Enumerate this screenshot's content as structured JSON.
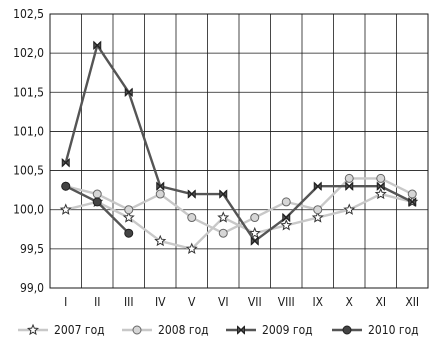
{
  "chart_data": {
    "type": "line",
    "categories": [
      "I",
      "II",
      "III",
      "IV",
      "V",
      "VI",
      "VII",
      "VIII",
      "IX",
      "X",
      "XI",
      "XII"
    ],
    "ylim": [
      99.0,
      102.5
    ],
    "yticks": [
      99.0,
      99.5,
      100.0,
      100.5,
      101.0,
      101.5,
      102.0,
      102.5
    ],
    "ytick_labels": [
      "99,0",
      "99,5",
      "100,0",
      "100,5",
      "101,0",
      "101,5",
      "102,0",
      "102,5"
    ],
    "grid": true,
    "legend_position": "bottom",
    "series": [
      {
        "name": "2007 год",
        "color": "#c8c8c8",
        "marker": "star",
        "values": [
          100.0,
          100.1,
          99.9,
          99.6,
          99.5,
          99.9,
          99.7,
          99.8,
          99.9,
          100.0,
          100.2,
          100.1
        ]
      },
      {
        "name": "2008 год",
        "color": "#c8c8c8",
        "marker": "circle",
        "values": [
          100.3,
          100.2,
          100.0,
          100.2,
          99.9,
          99.7,
          99.9,
          100.1,
          100.0,
          100.4,
          100.4,
          100.2
        ]
      },
      {
        "name": "2009 год",
        "color": "#555555",
        "marker": "bowtie",
        "values": [
          100.6,
          102.1,
          101.5,
          100.3,
          100.2,
          100.2,
          99.6,
          99.9,
          100.3,
          100.3,
          100.3,
          100.1
        ]
      },
      {
        "name": "2010 год",
        "color": "#555555",
        "marker": "circle-dark",
        "values": [
          100.3,
          100.1,
          99.7,
          null,
          null,
          null,
          null,
          null,
          null,
          null,
          null,
          null
        ]
      }
    ]
  }
}
